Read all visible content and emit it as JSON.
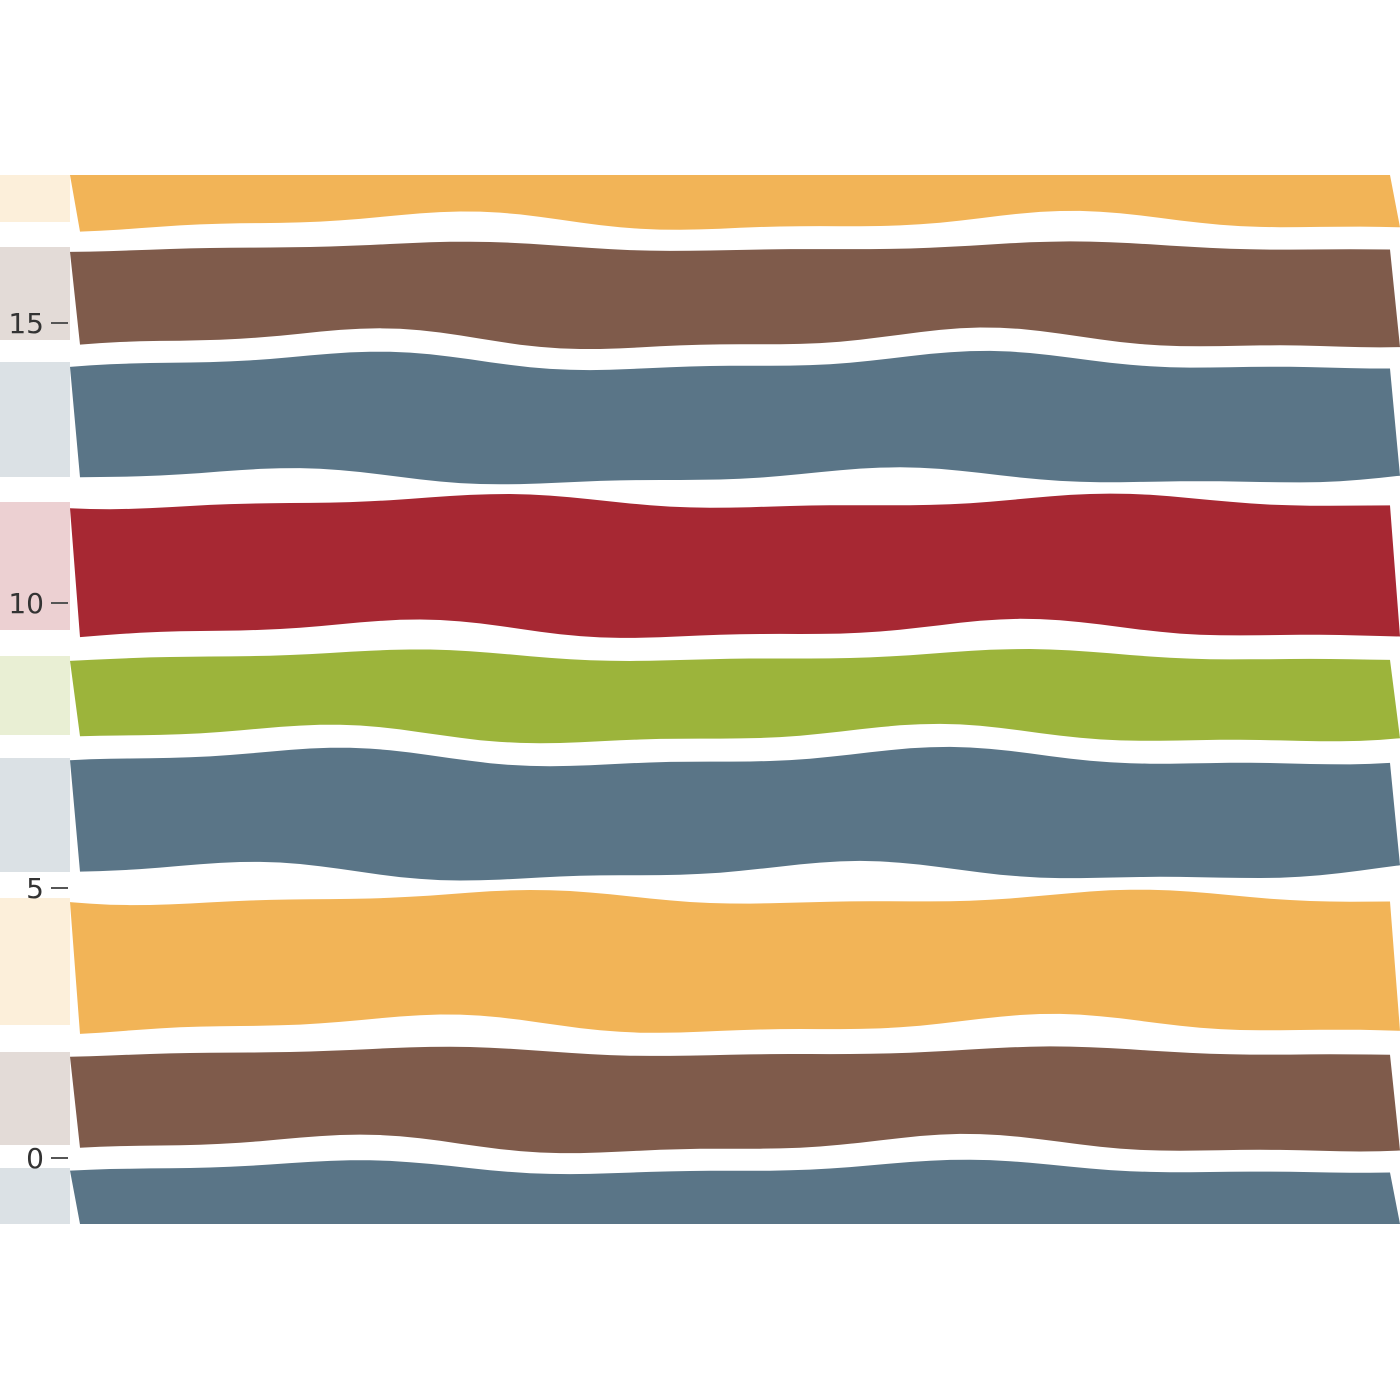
{
  "ruler": {
    "ticks": [
      {
        "label": "15",
        "value": 15
      },
      {
        "label": "10",
        "value": 10
      },
      {
        "label": "5",
        "value": 5
      },
      {
        "label": "0",
        "value": 0
      }
    ]
  },
  "stripes": [
    {
      "name": "stripe-orange-top",
      "color": "#F2B457"
    },
    {
      "name": "stripe-brown-upper",
      "color": "#7F5B4B"
    },
    {
      "name": "stripe-slate-upper",
      "color": "#5A7587"
    },
    {
      "name": "stripe-red",
      "color": "#A72833"
    },
    {
      "name": "stripe-green",
      "color": "#9CB43B"
    },
    {
      "name": "stripe-slate-middle",
      "color": "#5A7587"
    },
    {
      "name": "stripe-orange-lower",
      "color": "#F2B457"
    },
    {
      "name": "stripe-brown-lower",
      "color": "#7F5B4B"
    },
    {
      "name": "stripe-slate-bottom",
      "color": "#5A7587"
    }
  ]
}
